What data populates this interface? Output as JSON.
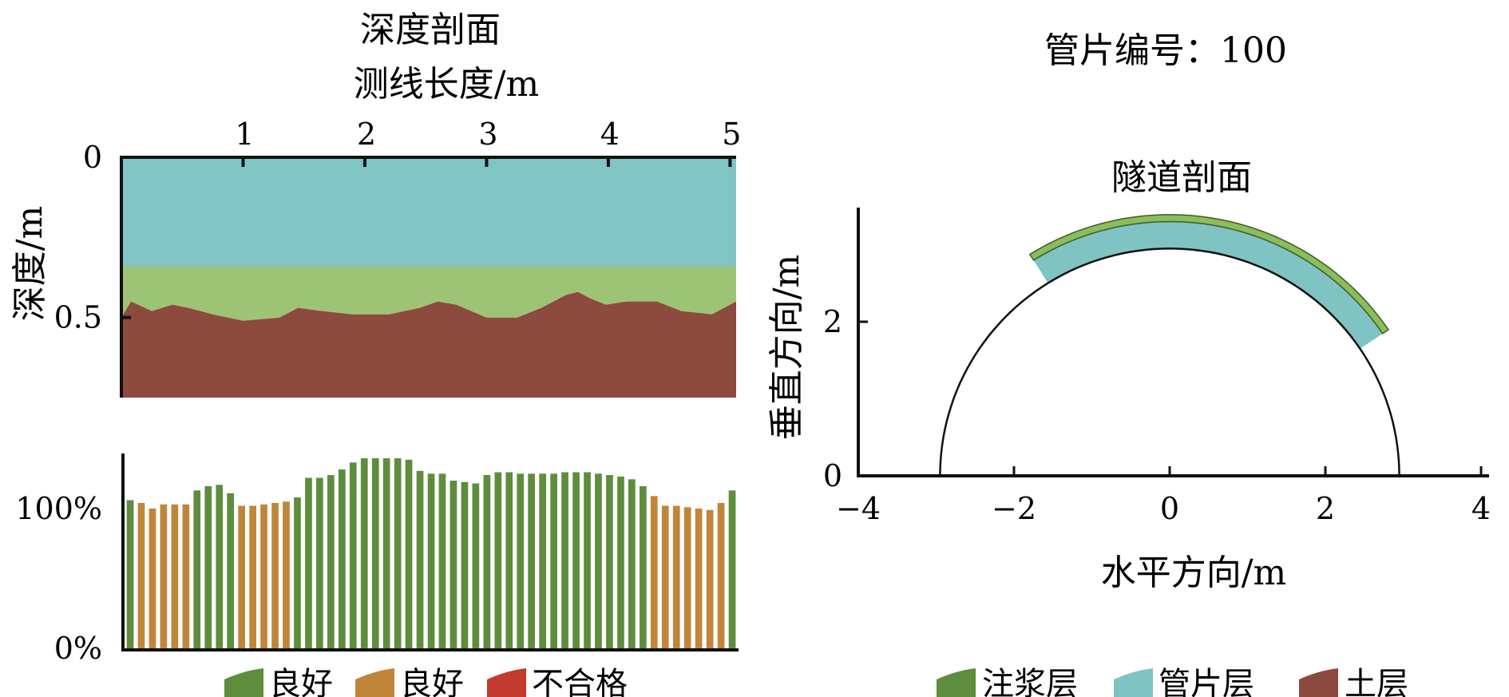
{
  "left": {
    "title": "深度剖面",
    "x_axis_label": "测线长度/m",
    "y_axis_label": "深度/m",
    "legend": [
      {
        "label": "良好",
        "color": "#5e8d3d"
      },
      {
        "label": "良好",
        "color": "#c1853a"
      },
      {
        "label": "不合格",
        "color": "#c33a2e"
      }
    ]
  },
  "right": {
    "title": "管片编号：100",
    "subtitle": "隧道剖面",
    "x_axis_label": "水平方向/m",
    "y_axis_label": "垂直方向/m",
    "legend": [
      {
        "label": "注浆层",
        "color": "#8bbd5a"
      },
      {
        "label": "管片层",
        "color": "#7fc3c3"
      },
      {
        "label": "土层",
        "color": "#8c4a3e"
      }
    ]
  },
  "chart_data": [
    {
      "type": "area",
      "title": "深度剖面",
      "xlabel": "测线长度/m",
      "ylabel": "深度/m",
      "xlim": [
        0,
        5.05
      ],
      "ylim": [
        0,
        0.75
      ],
      "y_inverted": true,
      "xticks": [
        "1",
        "2",
        "3",
        "4",
        "5"
      ],
      "yticks": [
        "0",
        "0.5"
      ],
      "layers": [
        {
          "name": "管片层",
          "color": "#80c4c4",
          "top": 0,
          "bottom": 0.34
        },
        {
          "name": "注浆层",
          "color": "#9dc474",
          "top": 0.34
        },
        {
          "name": "土层",
          "color": "#8d4a3e",
          "bottom": 0.75
        }
      ],
      "interface_x": [
        0,
        0.08,
        0.25,
        0.42,
        0.55,
        0.75,
        1.0,
        1.3,
        1.45,
        1.65,
        1.9,
        2.2,
        2.45,
        2.6,
        2.75,
        3.0,
        3.25,
        3.45,
        3.65,
        3.75,
        3.85,
        3.98,
        4.15,
        4.4,
        4.6,
        4.85,
        5.05
      ],
      "interface_depth": [
        0.5,
        0.45,
        0.48,
        0.46,
        0.47,
        0.49,
        0.51,
        0.5,
        0.47,
        0.48,
        0.49,
        0.49,
        0.47,
        0.45,
        0.46,
        0.5,
        0.5,
        0.47,
        0.43,
        0.42,
        0.44,
        0.46,
        0.45,
        0.45,
        0.48,
        0.49,
        0.45
      ]
    },
    {
      "type": "bar",
      "yticks": [
        "100%",
        "0%"
      ],
      "ylim": [
        0,
        145
      ],
      "values": [
        106,
        104,
        100,
        103,
        103,
        103,
        113,
        116,
        117,
        111,
        102,
        102,
        103,
        104,
        105,
        108,
        122,
        122,
        124,
        128,
        133,
        136,
        136,
        136,
        136,
        135,
        127,
        125,
        125,
        120,
        119,
        118,
        124,
        126,
        126,
        125,
        125,
        125,
        125,
        126,
        126,
        126,
        125,
        124,
        123,
        121,
        116,
        109,
        102,
        102,
        101,
        100,
        99,
        104,
        113
      ],
      "status": [
        "good-green",
        "good-orange",
        "good-orange",
        "good-orange",
        "good-orange",
        "good-orange",
        "good-green",
        "good-green",
        "good-green",
        "good-green",
        "good-orange",
        "good-orange",
        "good-orange",
        "good-orange",
        "good-orange",
        "good-green",
        "good-green",
        "good-green",
        "good-green",
        "good-green",
        "good-green",
        "good-green",
        "good-green",
        "good-green",
        "good-green",
        "good-green",
        "good-green",
        "good-green",
        "good-green",
        "good-green",
        "good-green",
        "good-green",
        "good-green",
        "good-green",
        "good-green",
        "good-green",
        "good-green",
        "good-green",
        "good-green",
        "good-green",
        "good-green",
        "good-green",
        "good-green",
        "good-green",
        "good-green",
        "good-green",
        "good-green",
        "good-orange",
        "good-orange",
        "good-orange",
        "good-orange",
        "good-orange",
        "good-orange",
        "good-orange",
        "good-green"
      ],
      "colors": {
        "good-green": "#5e8d3d",
        "good-orange": "#c1853a"
      }
    },
    {
      "type": "area",
      "title": "隧道剖面",
      "xlabel": "水平方向/m",
      "ylabel": "垂直方向/m",
      "xlim": [
        -4,
        4
      ],
      "ylim": [
        0,
        3.5
      ],
      "xticks": [
        "−4",
        "−2",
        "0",
        "2",
        "4"
      ],
      "yticks": [
        "2",
        "0"
      ],
      "tunnel_center": [
        0,
        0
      ],
      "tunnel_radius": 2.95,
      "arc_theta_range_deg": [
        34,
        122
      ],
      "segment_thickness": 0.35,
      "grout_thickness": 0.09
    }
  ]
}
